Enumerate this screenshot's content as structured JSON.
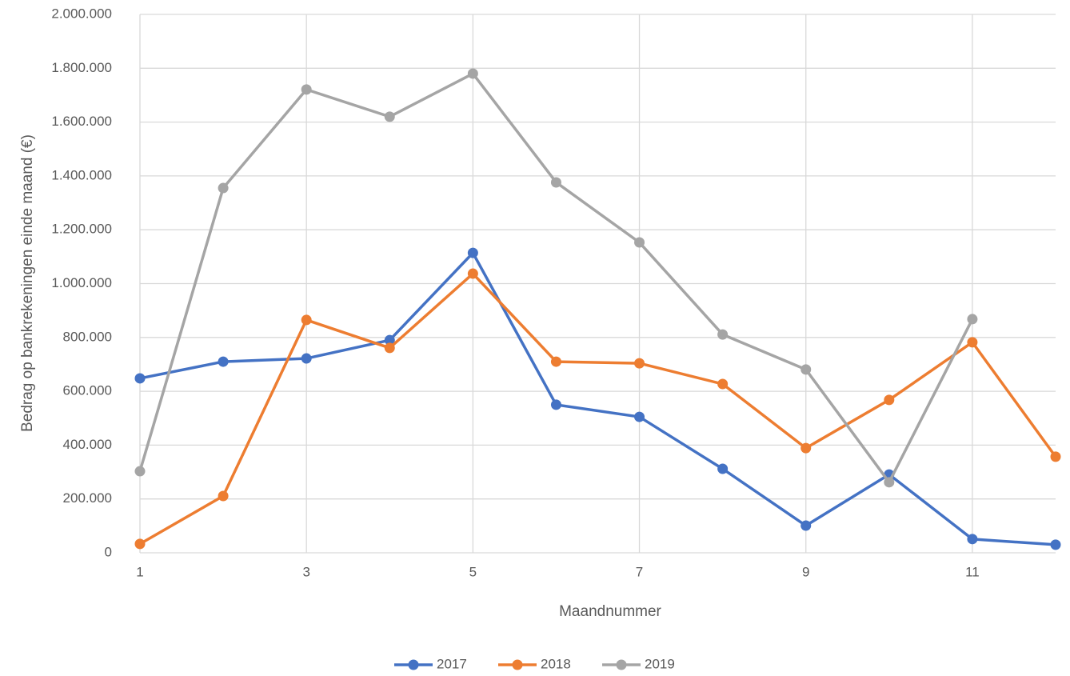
{
  "chart_data": {
    "type": "line",
    "x_label": "Maandnummer",
    "y_label": "Bedrag op bankrekeningen einde maand (€)",
    "x": [
      1,
      2,
      3,
      4,
      5,
      6,
      7,
      8,
      9,
      10,
      11,
      12
    ],
    "series": [
      {
        "name": "2017",
        "color": "#4472c4",
        "values": [
          648000,
          710000,
          722000,
          790000,
          1114000,
          550000,
          505000,
          312000,
          101000,
          291000,
          51000,
          30000
        ]
      },
      {
        "name": "2018",
        "color": "#ed7d31",
        "values": [
          33000,
          211000,
          865000,
          761000,
          1037000,
          710000,
          704000,
          627000,
          389000,
          568000,
          782000,
          357000
        ]
      },
      {
        "name": "2019",
        "color": "#a5a5a5",
        "values": [
          303000,
          1355000,
          1721000,
          1620000,
          1780000,
          1376000,
          1153000,
          811000,
          681000,
          262000,
          868000,
          null
        ]
      }
    ],
    "xlim": [
      1,
      12
    ],
    "xticks": [
      1,
      3,
      5,
      7,
      9,
      11
    ],
    "ylim": [
      0,
      2000000
    ],
    "yticks": [
      0,
      {
        "value": 200000,
        "label": "200.000"
      },
      {
        "value": 400000,
        "label": "400.000"
      },
      {
        "value": 600000,
        "label": "600.000"
      },
      {
        "value": 800000,
        "label": "800.000"
      },
      {
        "value": 1000000,
        "label": "1.000.000"
      },
      {
        "value": 1200000,
        "label": "1.200.000"
      },
      {
        "value": 1400000,
        "label": "1.400.000"
      },
      {
        "value": 1600000,
        "label": "1.600.000"
      },
      {
        "value": 1800000,
        "label": "1.800.000"
      },
      {
        "value": 2000000,
        "label": "2.000.000"
      }
    ],
    "grid": true,
    "legend": "bottom"
  }
}
